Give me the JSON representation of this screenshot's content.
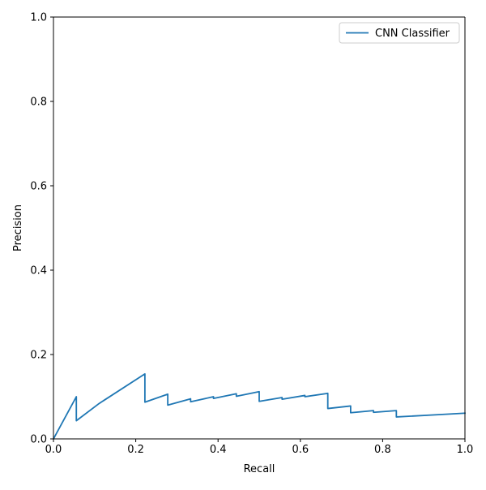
{
  "chart_data": {
    "type": "line",
    "title": "",
    "xlabel": "Recall",
    "ylabel": "Precision",
    "xlim": [
      0.0,
      1.0
    ],
    "ylim": [
      0.0,
      1.0
    ],
    "xticks": [
      "0.0",
      "0.2",
      "0.4",
      "0.6",
      "0.8",
      "1.0"
    ],
    "yticks": [
      "0.0",
      "0.2",
      "0.4",
      "0.6",
      "0.8",
      "1.0"
    ],
    "grid": false,
    "legend": {
      "placement": "upper-right"
    },
    "series": [
      {
        "name": "CNN Classifier",
        "color": "#1f77b4",
        "x": [
          0.0,
          0.0556,
          0.0556,
          0.1111,
          0.2222,
          0.2222,
          0.2778,
          0.2778,
          0.3333,
          0.3333,
          0.3889,
          0.3889,
          0.4444,
          0.4444,
          0.5,
          0.5,
          0.5556,
          0.5556,
          0.6111,
          0.6111,
          0.6667,
          0.6667,
          0.7222,
          0.7222,
          0.7778,
          0.7778,
          0.8333,
          0.8333,
          0.9444,
          1.0
        ],
        "y": [
          0.0,
          0.1,
          0.043,
          0.084,
          0.154,
          0.087,
          0.106,
          0.08,
          0.095,
          0.088,
          0.1,
          0.096,
          0.107,
          0.101,
          0.112,
          0.089,
          0.098,
          0.094,
          0.103,
          0.1,
          0.108,
          0.072,
          0.078,
          0.062,
          0.067,
          0.063,
          0.067,
          0.052,
          0.058,
          0.061
        ]
      }
    ]
  }
}
